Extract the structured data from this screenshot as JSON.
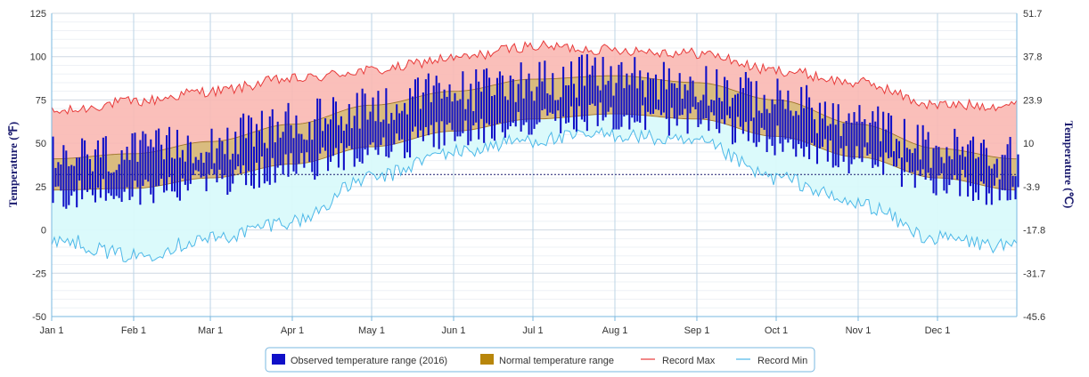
{
  "chart_data": {
    "type": "area",
    "x_axis": {
      "tick_labels": [
        "Jan 1",
        "Feb 1",
        "Mar 1",
        "Apr 1",
        "May 1",
        "Jun 1",
        "Jul 1",
        "Aug 1",
        "Sep 1",
        "Oct 1",
        "Nov 1",
        "Dec 1"
      ],
      "tick_days": [
        0,
        31,
        60,
        91,
        121,
        152,
        182,
        213,
        244,
        274,
        305,
        335
      ],
      "range_days": [
        0,
        365
      ]
    },
    "y_axis_left": {
      "label": "Temperature (℉)",
      "ticks": [
        125,
        100,
        75,
        50,
        25,
        0,
        -25,
        -50
      ],
      "range": [
        -50,
        125
      ]
    },
    "y_axis_right": {
      "label": "Temperature (℃)",
      "ticks": [
        "51.7",
        "37.8",
        "23.9",
        "10",
        "-3.9",
        "-17.8",
        "-31.7",
        "-45.6"
      ]
    },
    "freezing_line_f": 32,
    "grid": true,
    "legend": {
      "placement": "bottom-center",
      "items": [
        {
          "label": "Observed temperature range (2016)",
          "color": "#1010c8",
          "kind": "box"
        },
        {
          "label": "Normal temperature range",
          "color": "#b8860b",
          "kind": "box"
        },
        {
          "label": "Record Max",
          "color": "#e83a3a",
          "kind": "line"
        },
        {
          "label": "Record Min",
          "color": "#4db8e8",
          "kind": "line"
        }
      ]
    },
    "series": [
      {
        "name": "Record Max",
        "kind": "line",
        "month_start_values": [
          68,
          74,
          80,
          87,
          92,
          99,
          106,
          104,
          102,
          92,
          85,
          72,
          72
        ]
      },
      {
        "name": "Record Min",
        "kind": "line",
        "month_start_values": [
          -5,
          -15,
          -5,
          5,
          30,
          45,
          52,
          55,
          50,
          30,
          15,
          -5,
          -10
        ]
      },
      {
        "name": "Normal High",
        "kind": "band-top",
        "month_start_values": [
          41,
          44,
          51,
          61,
          72,
          80,
          87,
          89,
          85,
          75,
          61,
          47,
          41
        ]
      },
      {
        "name": "Normal Low",
        "kind": "band-bottom",
        "month_start_values": [
          23,
          24,
          30,
          38,
          48,
          57,
          64,
          67,
          64,
          54,
          42,
          30,
          23
        ]
      },
      {
        "name": "Observed temperature range (2016)",
        "kind": "range-bars",
        "n_days": 366
      }
    ]
  }
}
